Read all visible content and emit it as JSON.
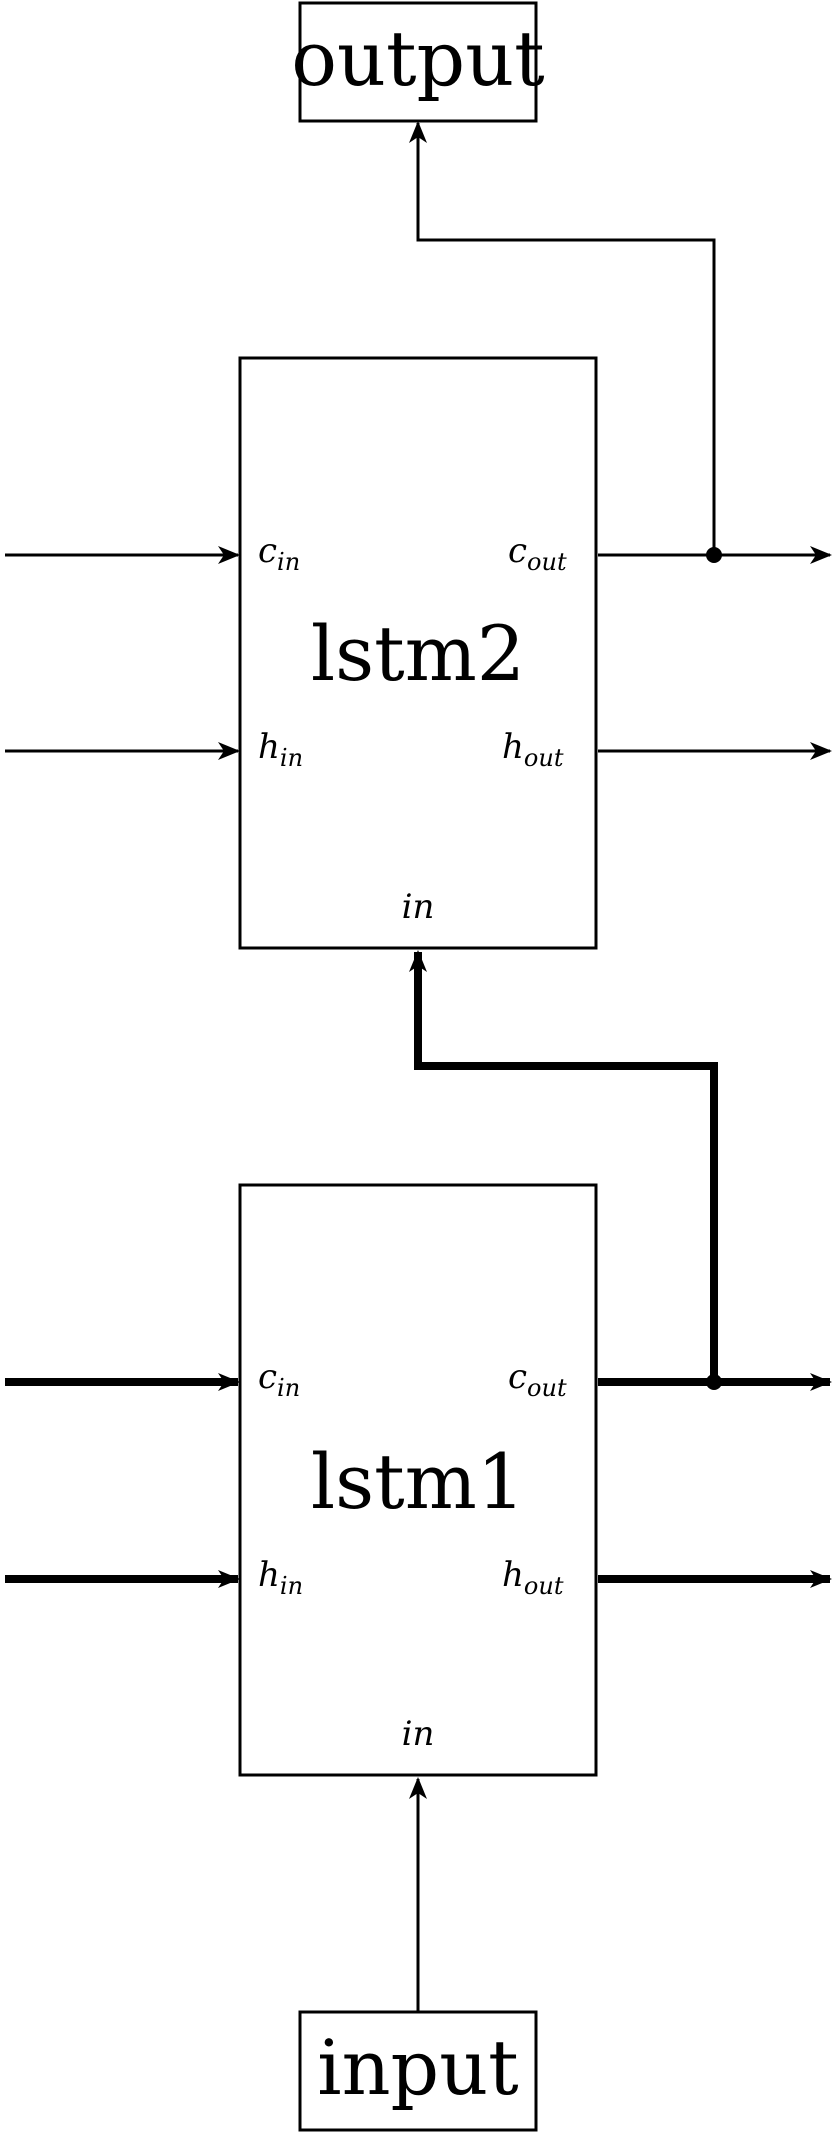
{
  "diagram": {
    "output_label": "output",
    "input_label": "input",
    "lstm2": {
      "label": "lstm2",
      "c_in": {
        "base": "c",
        "sub": "in"
      },
      "c_out": {
        "base": "c",
        "sub": "out"
      },
      "h_in": {
        "base": "h",
        "sub": "in"
      },
      "h_out": {
        "base": "h",
        "sub": "out"
      },
      "in": "in"
    },
    "lstm1": {
      "label": "lstm1",
      "c_in": {
        "base": "c",
        "sub": "in"
      },
      "c_out": {
        "base": "c",
        "sub": "out"
      },
      "h_in": {
        "base": "h",
        "sub": "in"
      },
      "h_out": {
        "base": "h",
        "sub": "out"
      },
      "in": "in"
    }
  },
  "colors": {
    "stroke": "#000000",
    "background": "#ffffff"
  }
}
